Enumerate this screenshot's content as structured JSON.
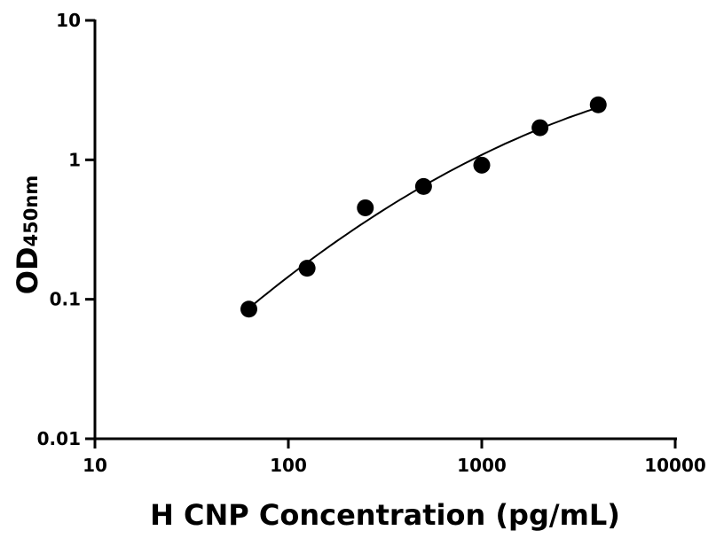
{
  "chart_data": {
    "type": "scatter",
    "title": "",
    "xlabel": "H CNP Concentration (pg/mL)",
    "ylabel": "OD",
    "ylabel_subscript": "450nm",
    "xscale": "log",
    "yscale": "log",
    "xlim": [
      10,
      10000
    ],
    "ylim": [
      0.01,
      10
    ],
    "xticks": [
      "10",
      "100",
      "1000",
      "10000"
    ],
    "yticks": [
      "0.01",
      "0.1",
      "1",
      "10"
    ],
    "grid": false,
    "fit_curve": true,
    "marker_color": "#000000",
    "series": [
      {
        "x": [
          62.5,
          125,
          250,
          500,
          1000,
          2000,
          4000
        ],
        "y": [
          0.085,
          0.167,
          0.453,
          0.644,
          0.916,
          1.7,
          2.48
        ]
      }
    ]
  }
}
